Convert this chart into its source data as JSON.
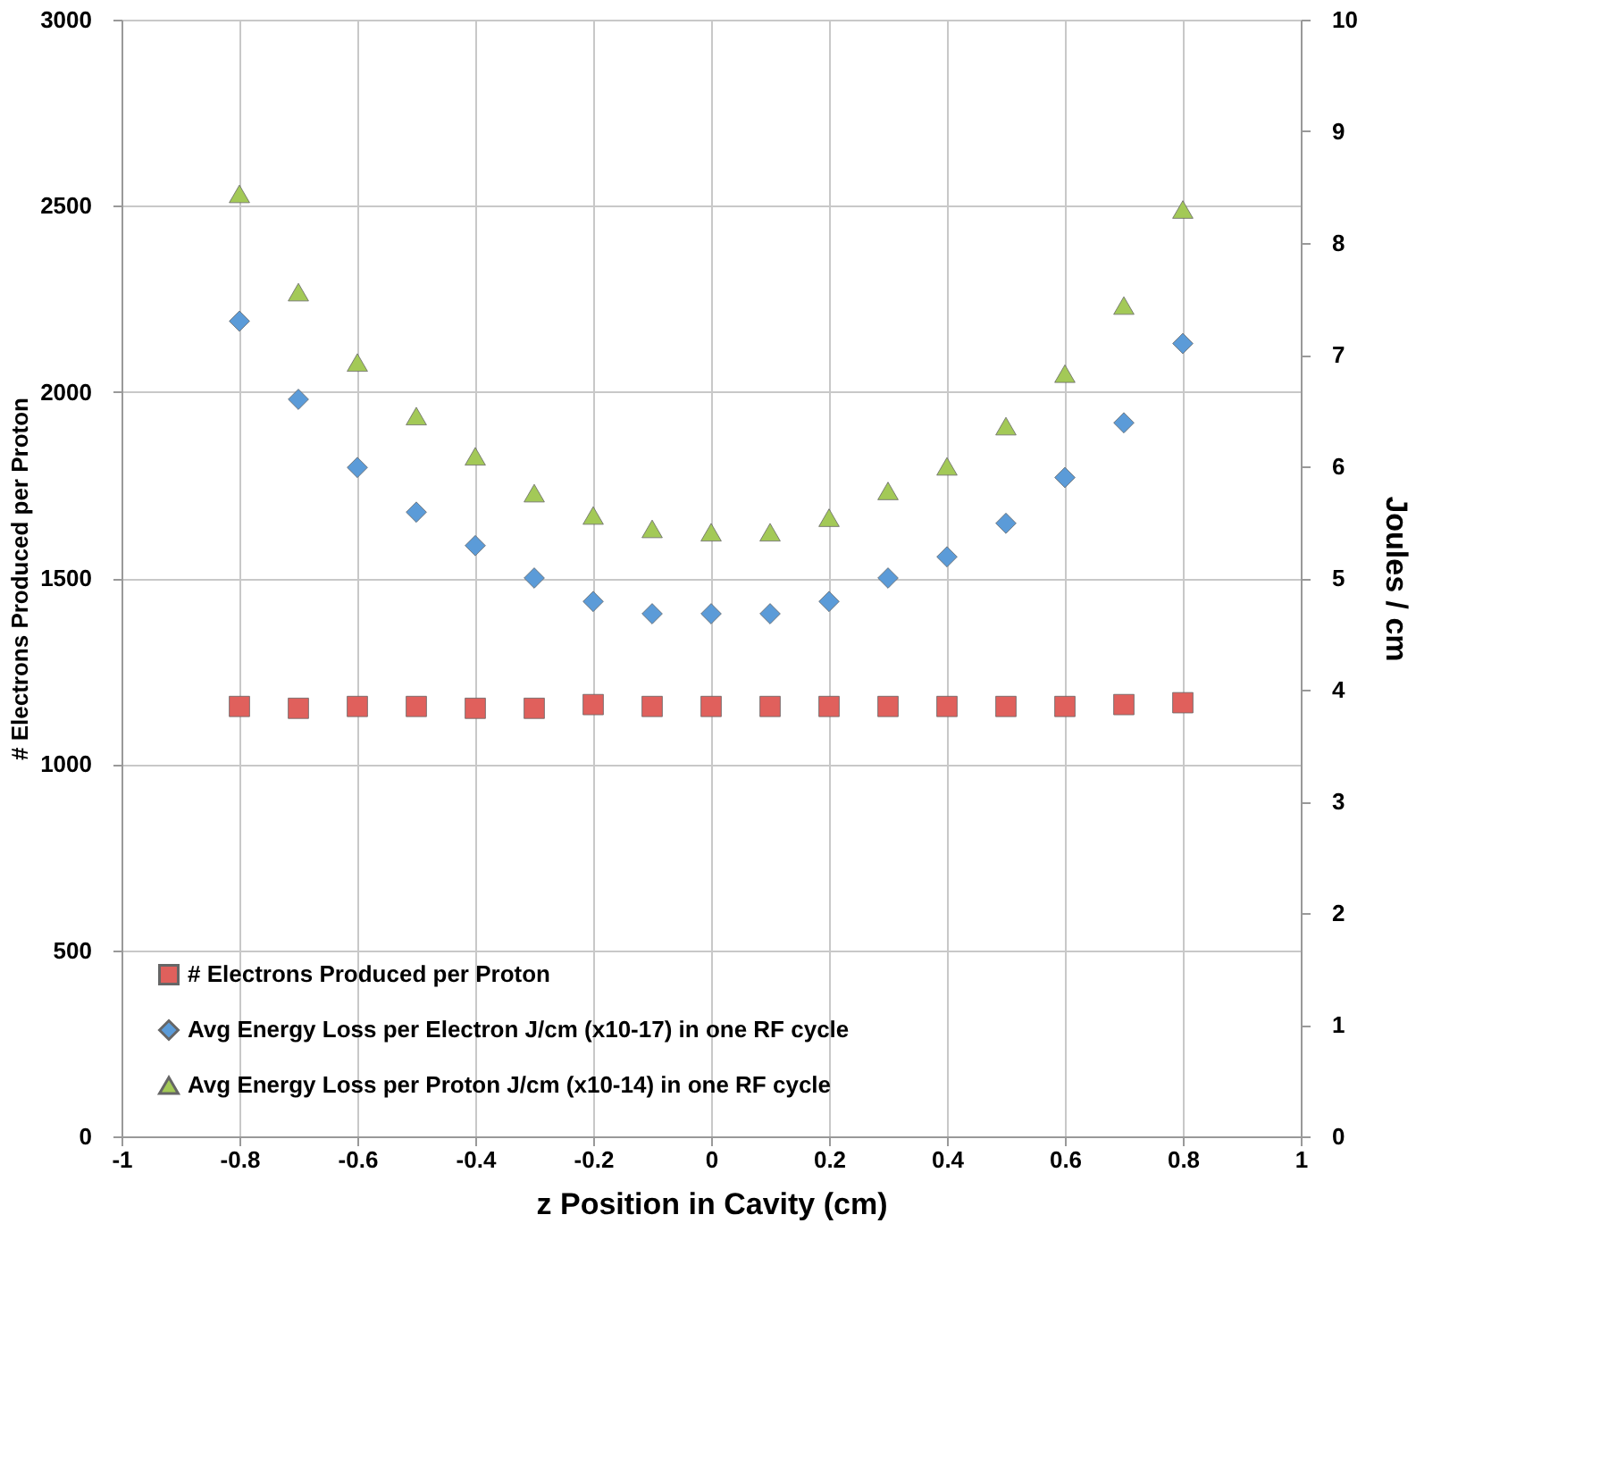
{
  "chart_data": {
    "type": "scatter",
    "xlabel": "z Position in Cavity (cm)",
    "ylabel": "# Electrons Produced per Proton",
    "y2label": "Joules / cm",
    "x": [
      -0.8,
      -0.7,
      -0.6,
      -0.5,
      -0.4,
      -0.3,
      -0.2,
      -0.1,
      0,
      0.1,
      0.2,
      0.3,
      0.4,
      0.5,
      0.6,
      0.7,
      0.8
    ],
    "series": [
      {
        "name": "# Electrons Produced per Proton",
        "color": "#e0605c",
        "marker": "square",
        "values": [
          1155,
          1150,
          1155,
          1155,
          1150,
          1150,
          1160,
          1155,
          1155,
          1155,
          1155,
          1155,
          1155,
          1155,
          1155,
          1160,
          1165
        ]
      },
      {
        "name": "Avg Energy Loss per Electron J/cm (x10-17) in one RF cycle",
        "color": "#5b9bd8",
        "marker": "diamond",
        "axis": "y2",
        "values": [
          7.3,
          6.6,
          5.99,
          5.59,
          5.29,
          5.0,
          4.79,
          4.68,
          4.68,
          4.68,
          4.79,
          5.0,
          5.19,
          5.49,
          5.9,
          6.39,
          7.1
        ]
      },
      {
        "name": "Avg Energy Loss per Proton J/cm (x10-14) in one RF cycle",
        "color": "#a3c957",
        "marker": "triangle",
        "axis": "y2",
        "values": [
          8.44,
          7.56,
          6.93,
          6.45,
          6.09,
          5.76,
          5.56,
          5.44,
          5.41,
          5.41,
          5.54,
          5.78,
          6.0,
          6.36,
          6.83,
          7.44,
          8.3
        ]
      }
    ],
    "xlim": [
      -1,
      1
    ],
    "xticks": [
      -1,
      -0.8,
      -0.6,
      -0.4,
      -0.2,
      0,
      0.2,
      0.4,
      0.6,
      0.8,
      1
    ],
    "ylim": [
      0,
      3000
    ],
    "yticks": [
      0,
      500,
      1000,
      1500,
      2000,
      2500,
      3000
    ],
    "y2lim": [
      0,
      10
    ],
    "y2ticks": [
      0,
      1,
      2,
      3,
      4,
      5,
      6,
      7,
      8,
      9,
      10
    ],
    "grid": true,
    "legend": "bottom left"
  }
}
